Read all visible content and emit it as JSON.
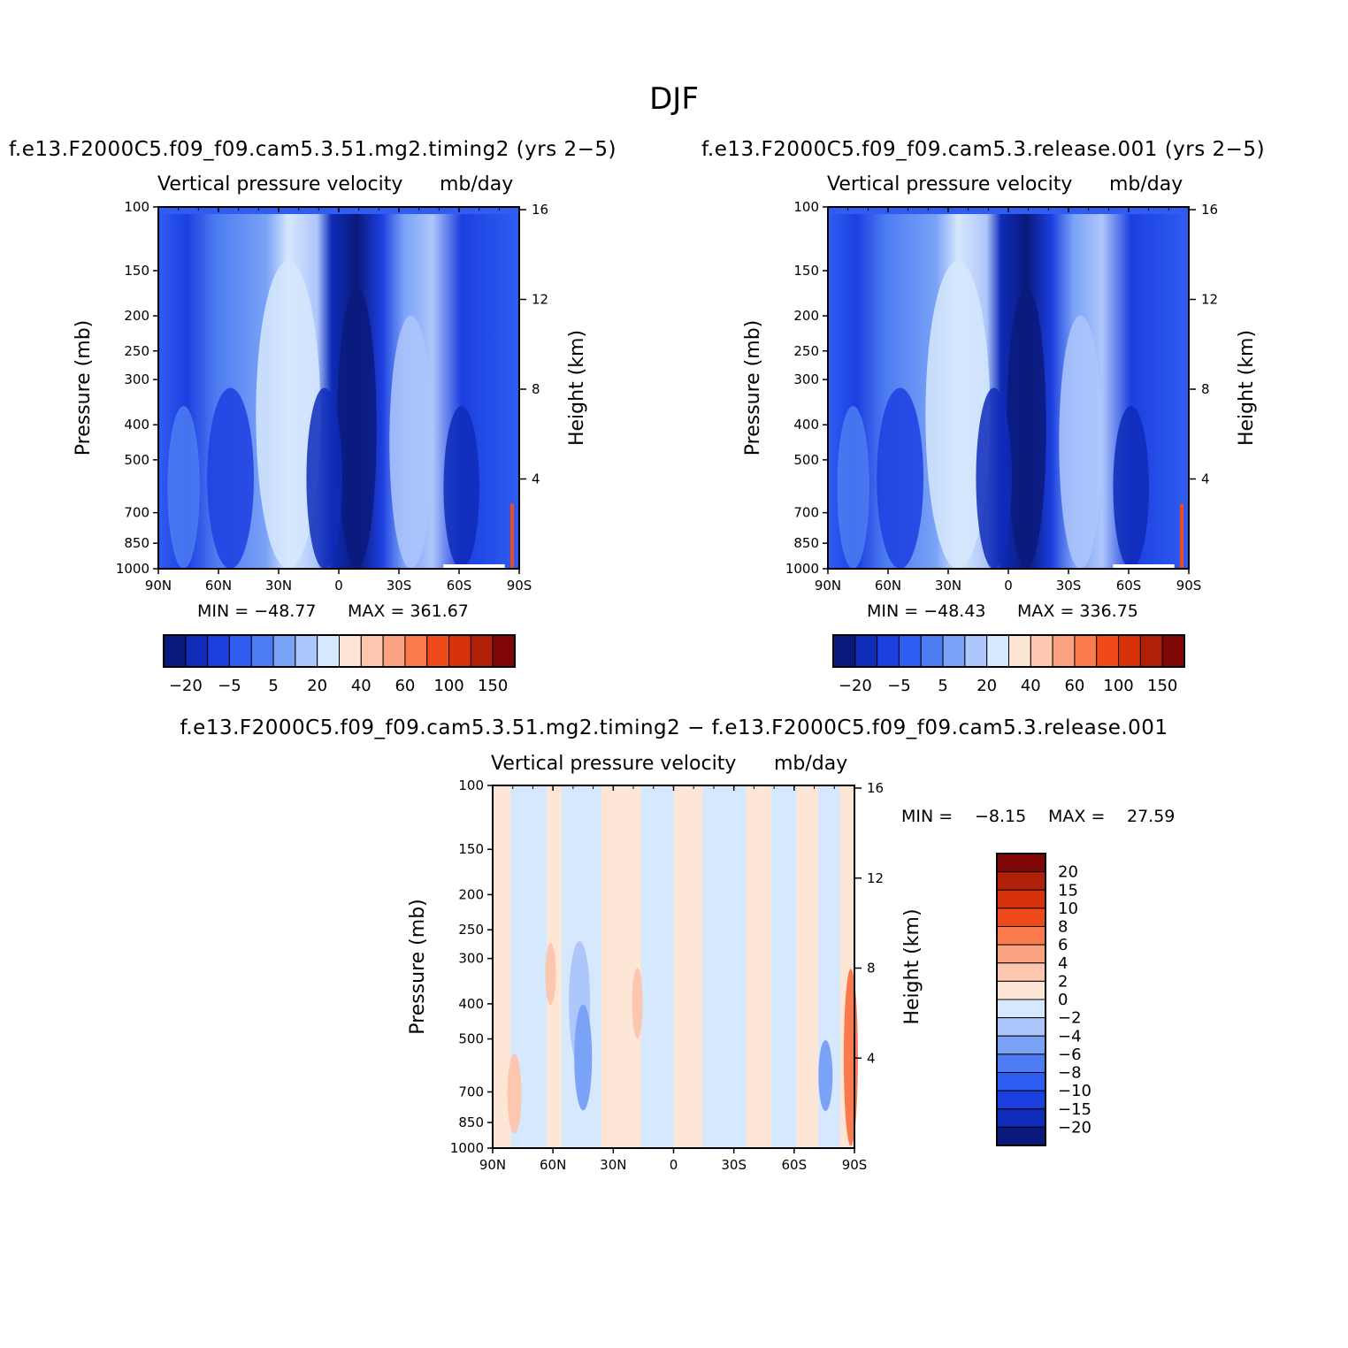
{
  "figure_title": "DJF",
  "chart_data": [
    {
      "type": "heatmap",
      "id": "panel1",
      "title": "f.e13.F2000C5.f09_f09.cam5.3.51.mg2.timing2 (yrs 2−5)",
      "plot_title": "Vertical pressure velocity",
      "units": "mb/day",
      "ylabel": "Pressure (mb)",
      "ylabel_right": "Height (km)",
      "x_ticks": [
        "90N",
        "60N",
        "30N",
        "0",
        "30S",
        "60S",
        "90S"
      ],
      "y_ticks": [
        "100",
        "150",
        "200",
        "250",
        "300",
        "400",
        "500",
        "700",
        "850",
        "1000"
      ],
      "y_right_ticks": [
        "16",
        "12",
        "8",
        "4"
      ],
      "min_label": "MIN = −48.77",
      "max_label": "MAX = 361.67",
      "min": -48.77,
      "max": 361.67,
      "colorbar_levels": [
        "−20",
        "−5",
        "5",
        "20",
        "40",
        "60",
        "100",
        "150"
      ],
      "colorbar_colors": [
        "#0a1a7c",
        "#0f2cb8",
        "#1c3fe0",
        "#2f5df2",
        "#4d7cf2",
        "#7aa2f7",
        "#adc6fb",
        "#d6e8fd",
        "#fde6d6",
        "#fcc7ae",
        "#fba380",
        "#fa7a4d",
        "#f04a1c",
        "#d8320c",
        "#b02008",
        "#7e0606"
      ]
    },
    {
      "type": "heatmap",
      "id": "panel2",
      "title": "f.e13.F2000C5.f09_f09.cam5.3.release.001 (yrs 2−5)",
      "plot_title": "Vertical pressure velocity",
      "units": "mb/day",
      "ylabel": "Pressure (mb)",
      "ylabel_right": "Height (km)",
      "x_ticks": [
        "90N",
        "60N",
        "30N",
        "0",
        "30S",
        "60S",
        "90S"
      ],
      "y_ticks": [
        "100",
        "150",
        "200",
        "250",
        "300",
        "400",
        "500",
        "700",
        "850",
        "1000"
      ],
      "y_right_ticks": [
        "16",
        "12",
        "8",
        "4"
      ],
      "min_label": "MIN = −48.43",
      "max_label": "MAX = 336.75",
      "min": -48.43,
      "max": 336.75,
      "colorbar_levels": [
        "−20",
        "−5",
        "5",
        "20",
        "40",
        "60",
        "100",
        "150"
      ],
      "colorbar_colors": [
        "#0a1a7c",
        "#0f2cb8",
        "#1c3fe0",
        "#2f5df2",
        "#4d7cf2",
        "#7aa2f7",
        "#adc6fb",
        "#d6e8fd",
        "#fde6d6",
        "#fcc7ae",
        "#fba380",
        "#fa7a4d",
        "#f04a1c",
        "#d8320c",
        "#b02008",
        "#7e0606"
      ]
    },
    {
      "type": "heatmap",
      "id": "panel3",
      "title": "f.e13.F2000C5.f09_f09.cam5.3.51.mg2.timing2 − f.e13.F2000C5.f09_f09.cam5.3.release.001",
      "plot_title": "Vertical pressure velocity",
      "units": "mb/day",
      "ylabel": "Pressure (mb)",
      "ylabel_right": "Height (km)",
      "x_ticks": [
        "90N",
        "60N",
        "30N",
        "0",
        "30S",
        "60S",
        "90S"
      ],
      "y_ticks": [
        "100",
        "150",
        "200",
        "250",
        "300",
        "400",
        "500",
        "700",
        "850",
        "1000"
      ],
      "y_right_ticks": [
        "16",
        "12",
        "8",
        "4"
      ],
      "min_label": "MIN =",
      "min_value": "−8.15",
      "max_label": "MAX =",
      "max_value": "27.59",
      "min": -8.15,
      "max": 27.59,
      "colorbar_levels": [
        "20",
        "15",
        "10",
        "8",
        "6",
        "4",
        "2",
        "0",
        "−2",
        "−4",
        "−6",
        "−8",
        "−10",
        "−15",
        "−20"
      ],
      "colorbar_colors": [
        "#7e0606",
        "#b02008",
        "#d8320c",
        "#f04a1c",
        "#fa7a4d",
        "#fba380",
        "#fcc7ae",
        "#fde6d6",
        "#d6e8fd",
        "#adc6fb",
        "#7aa2f7",
        "#4d7cf2",
        "#2f5df2",
        "#1c3fe0",
        "#0f2cb8",
        "#0a1a7c"
      ]
    }
  ]
}
